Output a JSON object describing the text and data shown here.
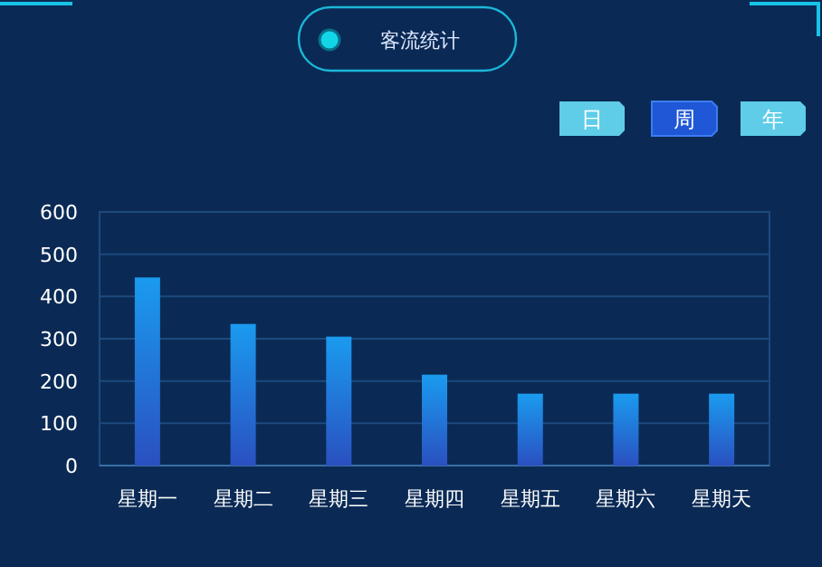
{
  "chart_data": {
    "type": "bar",
    "title": "客流统计",
    "categories": [
      "星期一",
      "星期二",
      "星期三",
      "星期四",
      "星期五",
      "星期六",
      "星期天"
    ],
    "values": [
      445,
      335,
      305,
      215,
      170,
      170,
      170
    ],
    "color": "#1a9bef",
    "ylim": [
      0,
      600
    ],
    "yticks": [
      0,
      100,
      200,
      300,
      400,
      500,
      600
    ],
    "grid": "y",
    "annotations": [
      "日",
      "周",
      "年"
    ]
  }
}
